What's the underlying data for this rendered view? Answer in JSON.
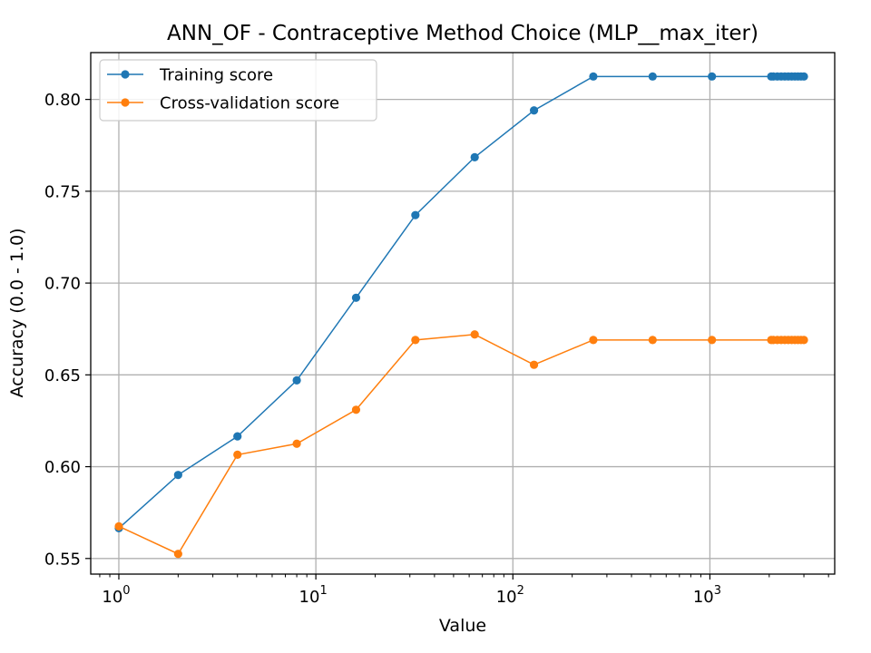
{
  "chart_data": {
    "type": "line",
    "title": "ANN_OF - Contraceptive Method Choice (MLP__max_iter)",
    "xlabel": "Value",
    "ylabel": "Accuracy (0.0 - 1.0)",
    "xscale": "log",
    "xlim": [
      0.72,
      4300
    ],
    "ylim": [
      0.5415,
      0.8255
    ],
    "grid": true,
    "legend_position": "upper left",
    "x": [
      1,
      2,
      4,
      8,
      16,
      32,
      64,
      128,
      256,
      512,
      1024,
      2048,
      2100,
      2200,
      2300,
      2400,
      2500,
      2600,
      2700,
      2800,
      2900,
      3000
    ],
    "series": [
      {
        "name": "Training score",
        "color": "#1f77b4",
        "values": [
          0.5665,
          0.5955,
          0.6165,
          0.647,
          0.692,
          0.737,
          0.7685,
          0.794,
          0.8125,
          0.8125,
          0.8125,
          0.8125,
          0.8125,
          0.8125,
          0.8125,
          0.8125,
          0.8125,
          0.8125,
          0.8125,
          0.8125,
          0.8125,
          0.8125
        ]
      },
      {
        "name": "Cross-validation score",
        "color": "#ff7f0e",
        "values": [
          0.5675,
          0.5525,
          0.6065,
          0.6125,
          0.631,
          0.669,
          0.672,
          0.6555,
          0.669,
          0.669,
          0.669,
          0.669,
          0.669,
          0.669,
          0.669,
          0.669,
          0.669,
          0.669,
          0.669,
          0.669,
          0.669,
          0.669
        ]
      }
    ],
    "yticks": [
      "0.55",
      "0.60",
      "0.65",
      "0.70",
      "0.75",
      "0.80"
    ],
    "xticks": [
      {
        "base": "10",
        "exp": "0"
      },
      {
        "base": "10",
        "exp": "1"
      },
      {
        "base": "10",
        "exp": "2"
      },
      {
        "base": "10",
        "exp": "3"
      }
    ]
  }
}
